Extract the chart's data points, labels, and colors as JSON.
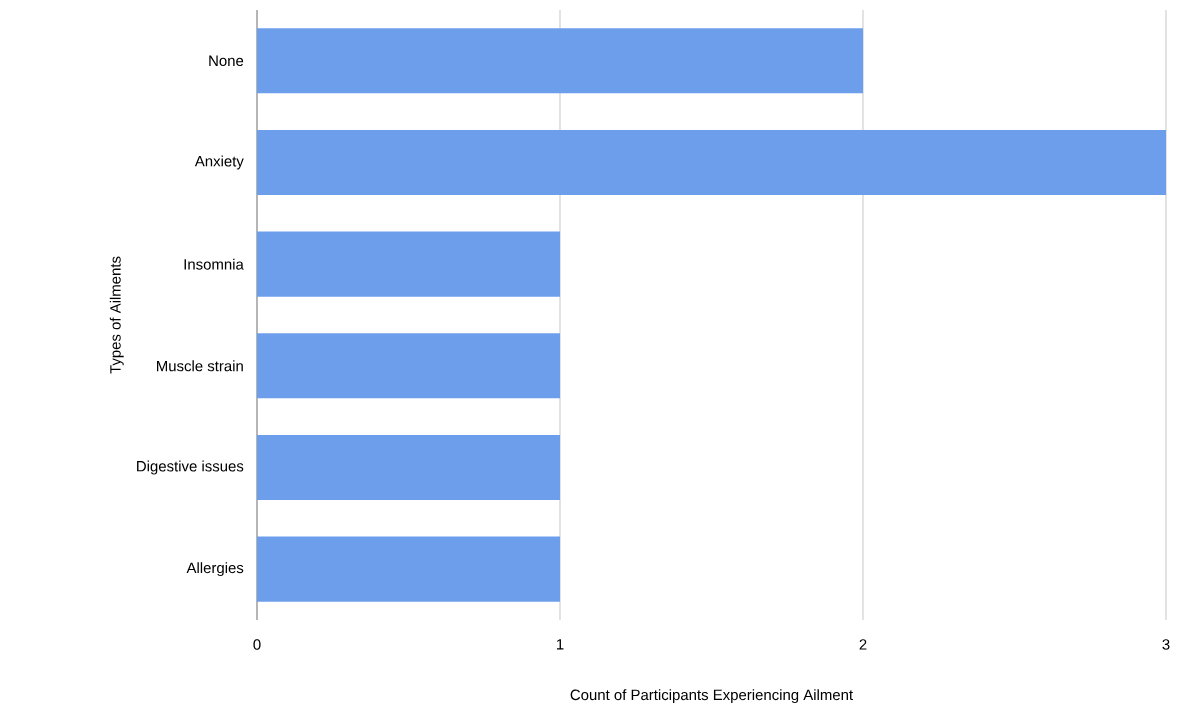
{
  "chart_data": {
    "type": "bar",
    "orientation": "horizontal",
    "categories": [
      "None",
      "Anxiety",
      "Insomnia",
      "Muscle strain",
      "Digestive issues",
      "Allergies"
    ],
    "values": [
      2,
      3,
      1,
      1,
      1,
      1
    ],
    "color": "#6d9eeb",
    "xlabel": "Count of Participants Experiencing Ailment",
    "ylabel": "Types of Ailments",
    "xlim": [
      0,
      3
    ],
    "xticks": [
      0,
      1,
      2,
      3
    ],
    "grid": "x"
  }
}
